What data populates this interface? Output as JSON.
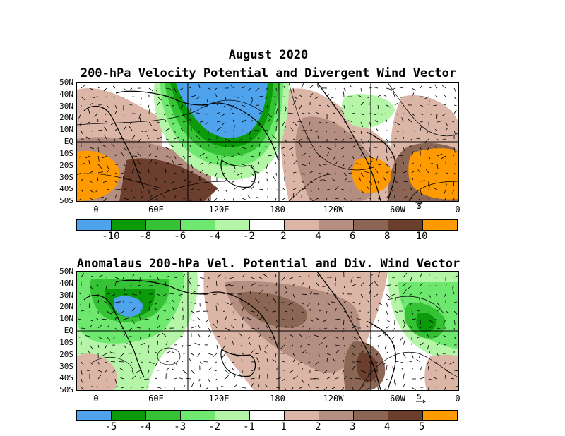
{
  "header": {
    "month_title": "August 2020",
    "panel1_title": "200-hPa Velocity Potential and Divergent Wind Vector",
    "panel2_title": "Anomalaus 200-hPa Vel. Potential and Div. Wind Vector"
  },
  "lat_labels": [
    "50N",
    "40N",
    "30N",
    "20N",
    "10N",
    "EQ",
    "10S",
    "20S",
    "30S",
    "40S",
    "50S"
  ],
  "lon_labels": [
    "0",
    "60E",
    "120E",
    "180",
    "120W",
    "60W",
    "0"
  ],
  "panel1": {
    "vector_ref": "3",
    "colorbar": {
      "colors": [
        "#4fa3ec",
        "#0a9a0a",
        "#35c235",
        "#6ee86e",
        "#b4f5a8",
        "#ffffff",
        "#dbb6a6",
        "#b48e80",
        "#8c6654",
        "#6b3e2e",
        "#ff9a00"
      ],
      "labels": [
        "-10",
        "-8",
        "-6",
        "-4",
        "-2",
        "2",
        "4",
        "6",
        "8",
        "10"
      ]
    }
  },
  "panel2": {
    "vector_ref": "5",
    "colorbar": {
      "colors": [
        "#4fa3ec",
        "#0a9a0a",
        "#35c235",
        "#6ee86e",
        "#b4f5a8",
        "#ffffff",
        "#dbb6a6",
        "#b48e80",
        "#8c6654",
        "#6b3e2e",
        "#ff9a00"
      ],
      "labels": [
        "-5",
        "-4",
        "-3",
        "-2",
        "-1",
        "1",
        "2",
        "3",
        "4",
        "5"
      ]
    }
  }
}
